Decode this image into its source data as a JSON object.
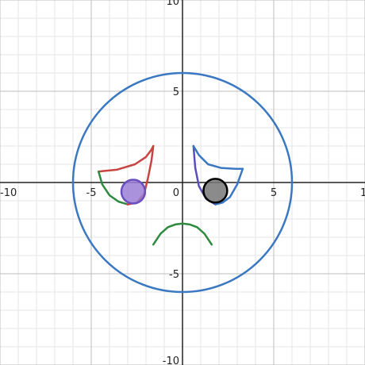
{
  "chart_data": {
    "type": "scatter",
    "xlim": [
      -10,
      10
    ],
    "ylim": [
      -10,
      10
    ],
    "grid": true,
    "x_ticks": [
      "-10",
      "-5",
      "0",
      "5",
      "10"
    ],
    "y_ticks": [
      "10",
      "5",
      "-5",
      "-10"
    ],
    "series": [
      {
        "shape": "circle",
        "role": "face",
        "color": "#3a78c2",
        "center": [
          0,
          0
        ],
        "radius": 6
      },
      {
        "shape": "curve",
        "role": "left-eye-upper",
        "color": "#c74440",
        "x": [
          -4.6,
          -3.6,
          -2.6,
          -2.0,
          -1.7,
          -1.6
        ],
        "y": [
          0.6,
          0.7,
          1.0,
          1.4,
          1.8,
          2.0
        ]
      },
      {
        "shape": "curve",
        "role": "left-eye-outer-lower",
        "color": "#2d8a3e",
        "x": [
          -4.6,
          -4.4,
          -4.0,
          -3.5,
          -3.0
        ],
        "y": [
          0.6,
          -0.1,
          -0.7,
          -1.05,
          -1.2
        ]
      },
      {
        "shape": "curve",
        "role": "left-eye-inner-lower",
        "color": "#c74440",
        "x": [
          -3.0,
          -2.5,
          -2.1,
          -1.9,
          -1.7,
          -1.6
        ],
        "y": [
          -1.2,
          -1.1,
          -0.6,
          0.2,
          1.2,
          2.0
        ]
      },
      {
        "shape": "disk",
        "role": "left-pupil",
        "color": "#9b7fd6",
        "stroke": "#6a4fbf",
        "center": [
          -2.7,
          -0.5
        ],
        "radius": 0.65
      },
      {
        "shape": "curve",
        "role": "right-eye-inner",
        "color": "#5a4fb8",
        "x": [
          0.6,
          0.7,
          0.9,
          1.3,
          1.8
        ],
        "y": [
          2.0,
          0.8,
          -0.2,
          -0.9,
          -1.2
        ]
      },
      {
        "shape": "curve",
        "role": "right-eye-upper",
        "color": "#3a78c2",
        "x": [
          0.6,
          0.9,
          1.4,
          2.1,
          2.9,
          3.3
        ],
        "y": [
          2.0,
          1.5,
          1.0,
          0.8,
          0.75,
          0.75
        ]
      },
      {
        "shape": "curve",
        "role": "right-eye-outer-lower",
        "color": "#3a78c2",
        "x": [
          3.3,
          3.0,
          2.6,
          2.2,
          1.8
        ],
        "y": [
          0.75,
          -0.1,
          -0.8,
          -1.1,
          -1.2
        ]
      },
      {
        "shape": "disk",
        "role": "right-pupil",
        "color": "#777777",
        "stroke": "#000000",
        "center": [
          1.8,
          -0.45
        ],
        "radius": 0.65
      },
      {
        "shape": "curve",
        "role": "mouth",
        "color": "#2d8a3e",
        "x": [
          -1.6,
          -1.2,
          -0.8,
          -0.4,
          0.0,
          0.4,
          0.8,
          1.2,
          1.6
        ],
        "y": [
          -3.4,
          -2.8,
          -2.45,
          -2.3,
          -2.25,
          -2.3,
          -2.45,
          -2.8,
          -3.4
        ]
      }
    ]
  }
}
